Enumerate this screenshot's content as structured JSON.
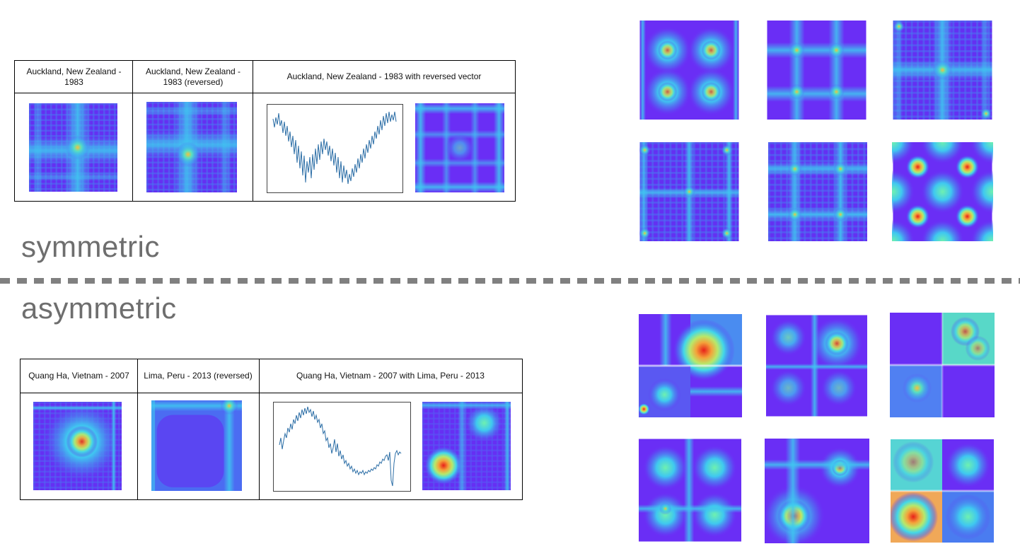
{
  "labels": {
    "symmetric": "symmetric",
    "asymmetric": "asymmetric"
  },
  "top_table": {
    "col1_header": "Auckland, New Zealand - 1983",
    "col2_header": "Auckland, New Zealand - 1983 (reversed)",
    "col3_header": "Auckland, New Zealand - 1983 with reversed vector"
  },
  "bottom_table": {
    "col1_header": "Quang Ha, Vietnam - 2007",
    "col2_header": "Lima, Peru - 2013 (reversed)",
    "col3_header": "Quang Ha, Vietnam - 2007 with Lima, Peru - 2013"
  },
  "colors": {
    "base": "#6b2cf5",
    "mid": "#3fb8f0",
    "hot": "#f02a1a",
    "warm": "#f0d860",
    "divider": "#808080",
    "text_label": "#6e6e6e",
    "plot_line": "#2c6ea6"
  }
}
